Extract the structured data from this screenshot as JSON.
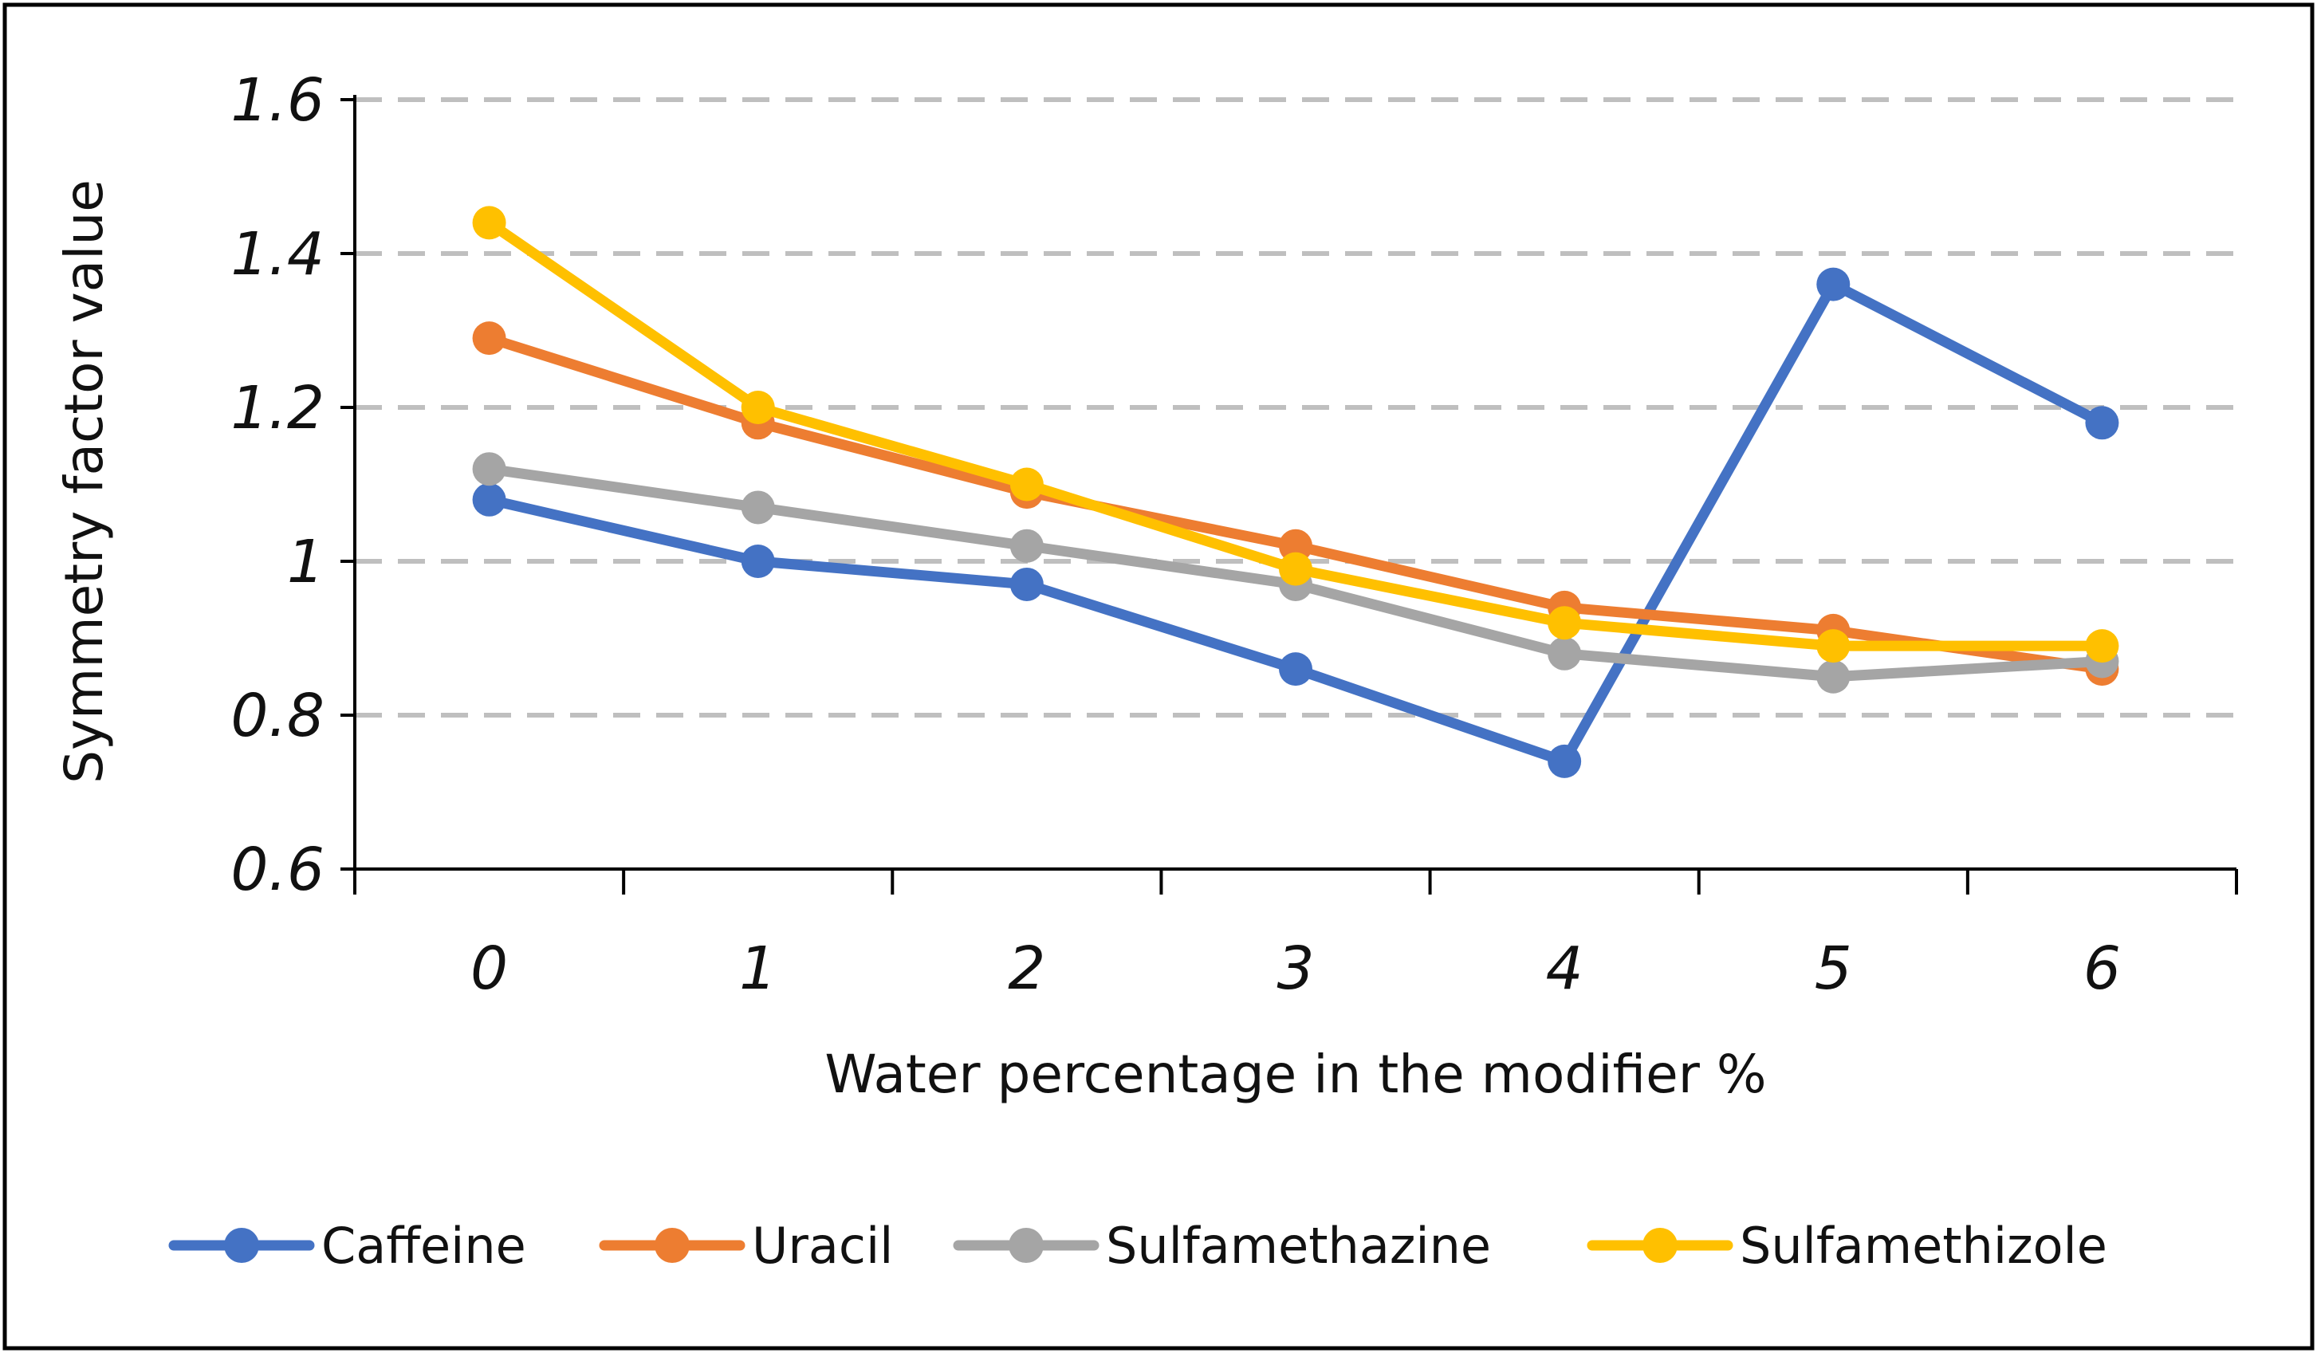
{
  "chart_data": {
    "type": "line",
    "title": "",
    "xlabel": "Water percentage in the modifier %",
    "ylabel": "Symmetry factor value",
    "categories": [
      "0",
      "1",
      "2",
      "3",
      "4",
      "5",
      "6"
    ],
    "ylim": [
      0.6,
      1.6
    ],
    "yticks": [
      0.6,
      0.8,
      1.0,
      1.2,
      1.4,
      1.6
    ],
    "ytick_labels": [
      "0.6",
      "0.8",
      "1",
      "1.2",
      "1.4",
      "1.6"
    ],
    "grid": "horizontal-dashed",
    "legend_position": "bottom",
    "series": [
      {
        "name": "Caffeine",
        "color": "#4472C4",
        "values": [
          1.08,
          1.0,
          0.97,
          0.86,
          0.74,
          1.36,
          1.18
        ]
      },
      {
        "name": "Uracil",
        "color": "#ED7D31",
        "values": [
          1.29,
          1.18,
          1.09,
          1.02,
          0.94,
          0.91,
          0.86
        ]
      },
      {
        "name": "Sulfamethazine",
        "color": "#A5A5A5",
        "values": [
          1.12,
          1.07,
          1.02,
          0.97,
          0.88,
          0.85,
          0.87
        ]
      },
      {
        "name": "Sulfamethizole",
        "color": "#FFC000",
        "values": [
          1.44,
          1.2,
          1.1,
          0.99,
          0.92,
          0.89,
          0.89
        ]
      }
    ]
  }
}
